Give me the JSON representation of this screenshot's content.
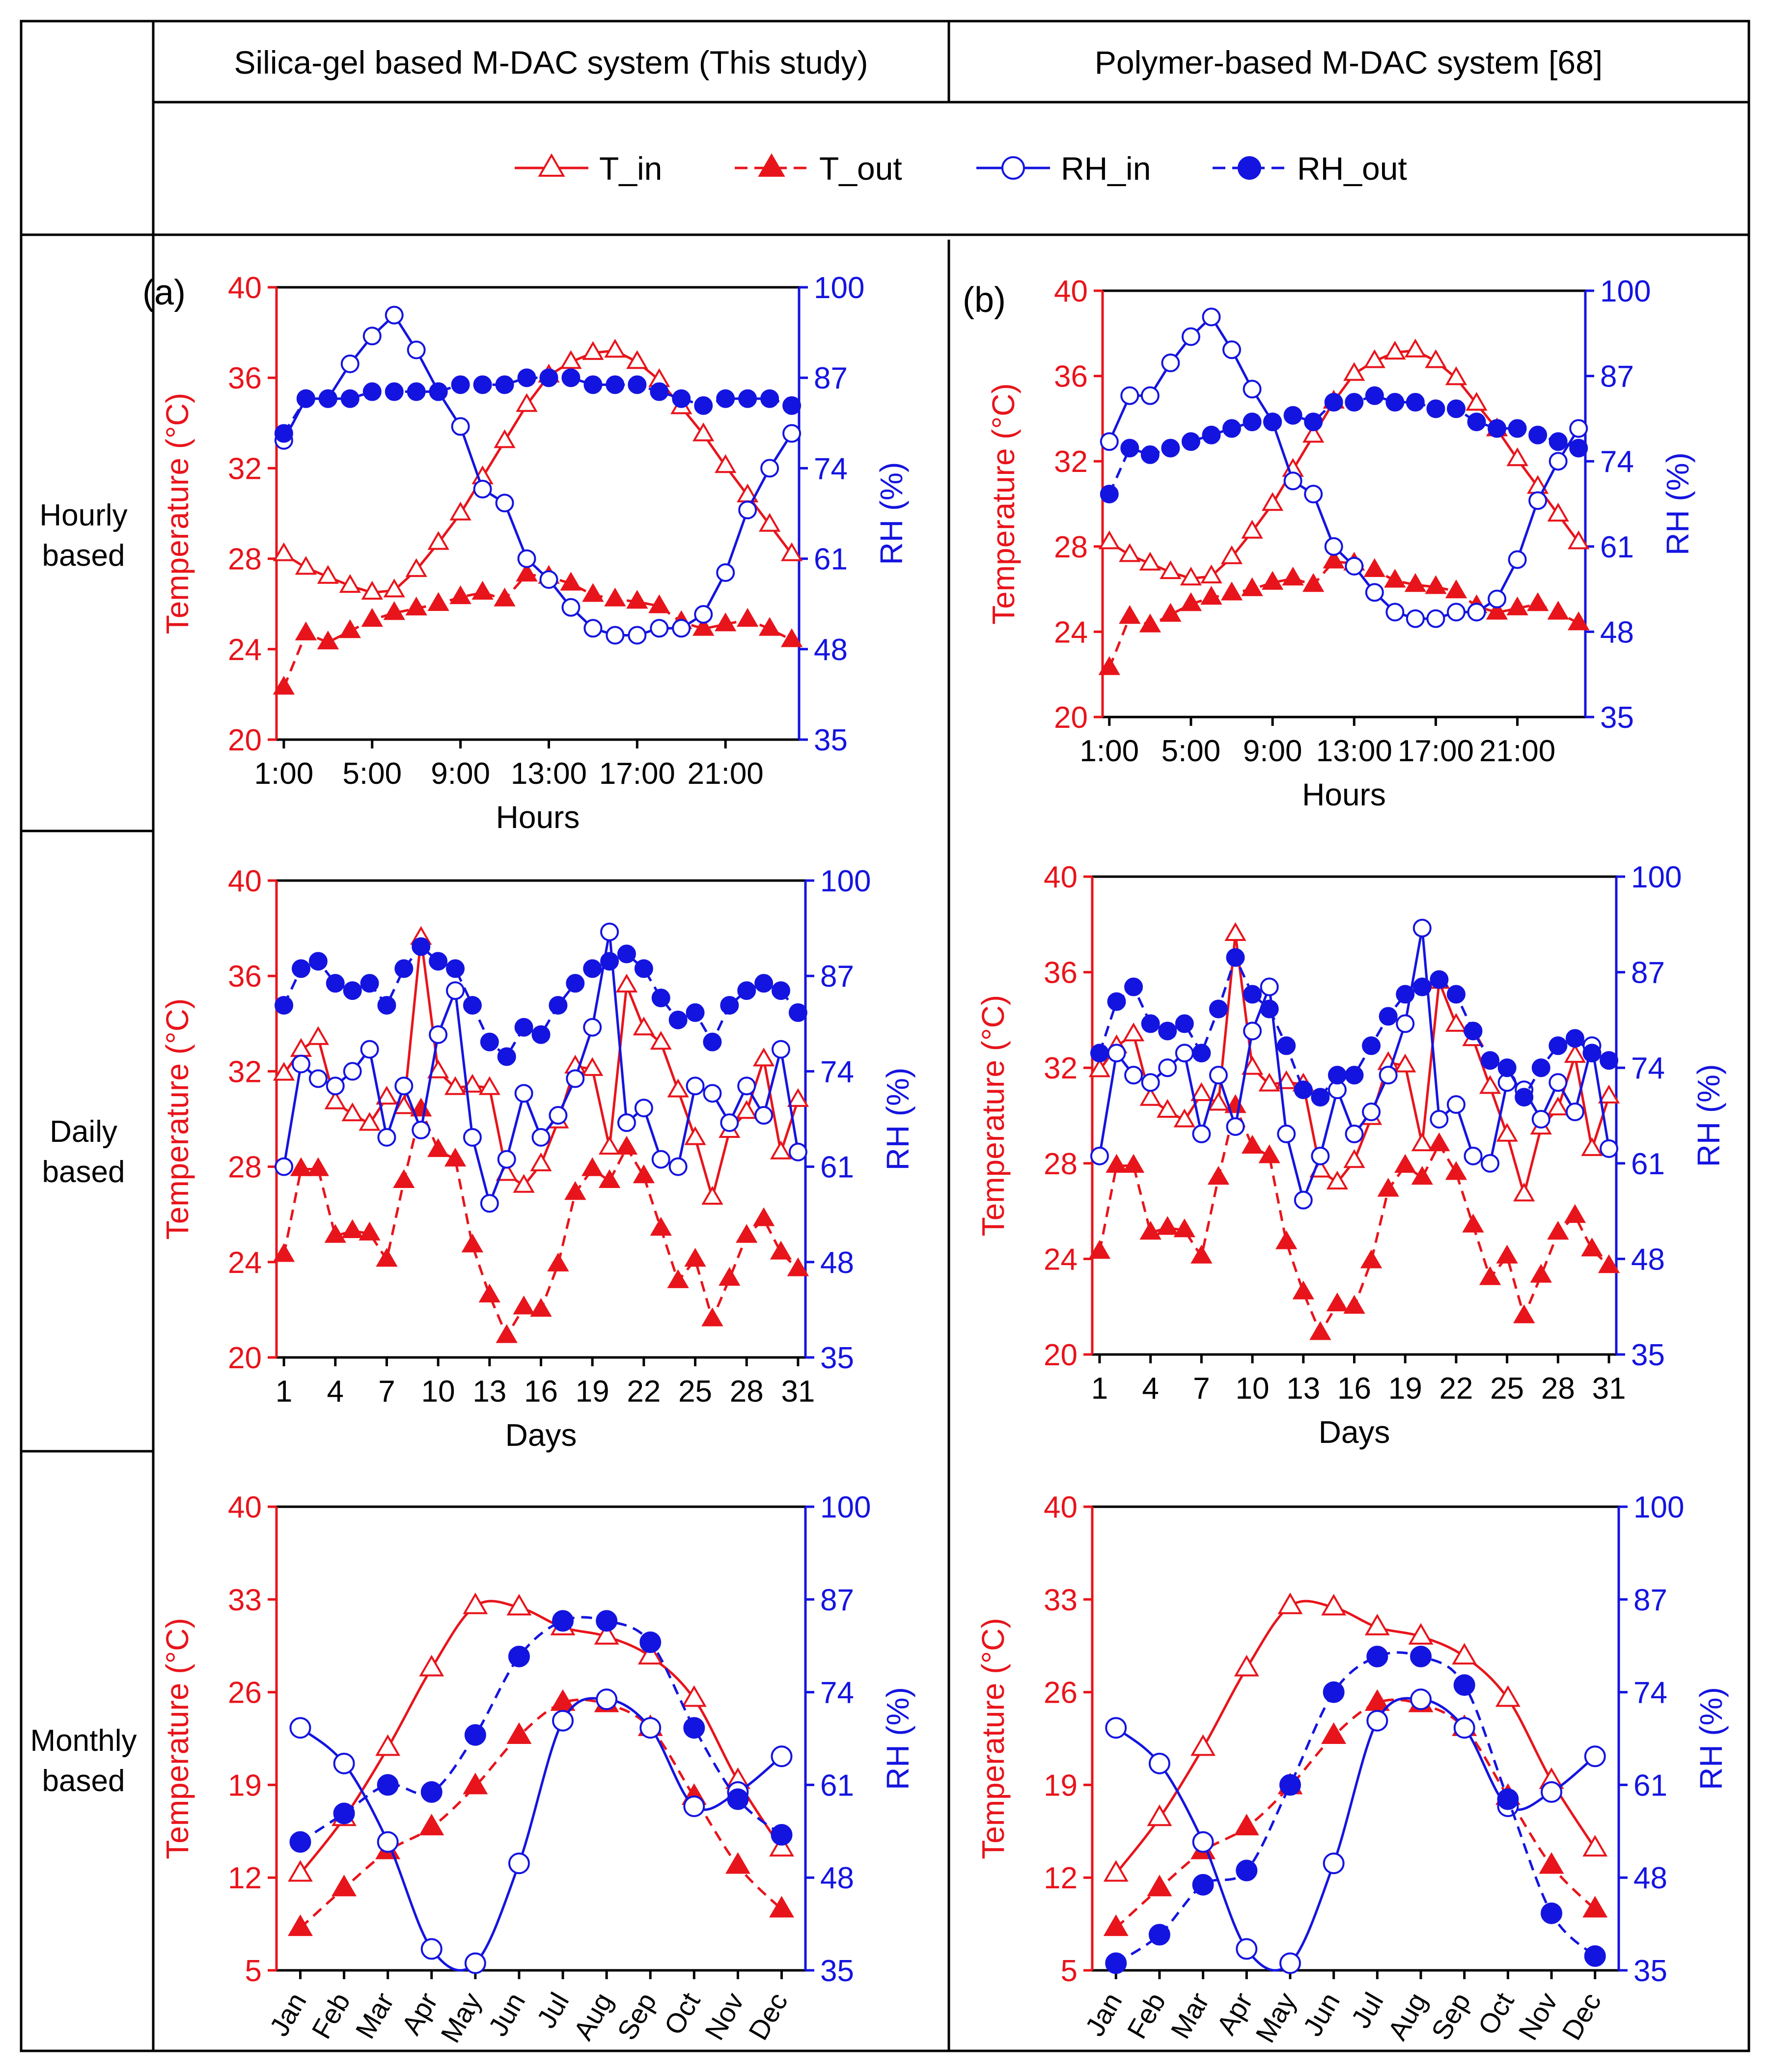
{
  "headers": {
    "col1": "Silica-gel based M-DAC system (This study)",
    "col2": "Polymer-based M-DAC system [68]"
  },
  "row_labels": [
    [
      "Hourly",
      "based"
    ],
    [
      "Daily",
      "based"
    ],
    [
      "Monthly",
      "based"
    ]
  ],
  "legend": [
    {
      "label": "T_in",
      "series": "T_in"
    },
    {
      "label": "T_out",
      "series": "T_out"
    },
    {
      "label": "RH_in",
      "series": "RH_in"
    },
    {
      "label": "RH_out",
      "series": "RH_out"
    }
  ],
  "colors": {
    "temperature": "#e8141b",
    "rh": "#1414e0",
    "frame": "#000000"
  },
  "chart_data": [
    {
      "id": "hourly-silica",
      "panel_label": "(a)",
      "type": "line",
      "xlabel": "Hours",
      "ylabel": "Temperature (°C)",
      "y2label": "RH (%)",
      "x": [
        1,
        2,
        3,
        4,
        5,
        6,
        7,
        8,
        9,
        10,
        11,
        12,
        13,
        14,
        15,
        16,
        17,
        18,
        19,
        20,
        21,
        22,
        23,
        24
      ],
      "xticks": [
        1,
        5,
        9,
        13,
        17,
        21
      ],
      "xticklabels": [
        "1:00",
        "5:00",
        "9:00",
        "13:00",
        "17:00",
        "21:00"
      ],
      "ylim": [
        20,
        40
      ],
      "yticks": [
        20,
        24,
        28,
        32,
        36,
        40
      ],
      "y2lim": [
        35,
        100
      ],
      "y2ticks": [
        35,
        48,
        61,
        74,
        87,
        100
      ],
      "series": [
        {
          "name": "T_in",
          "axis": "left",
          "values": [
            28.2,
            27.6,
            27.2,
            26.8,
            26.5,
            26.6,
            27.5,
            28.7,
            30.0,
            31.6,
            33.2,
            34.8,
            36.1,
            36.7,
            37.1,
            37.2,
            36.7,
            35.9,
            34.7,
            33.5,
            32.1,
            30.8,
            29.5,
            28.2
          ]
        },
        {
          "name": "T_out",
          "axis": "left",
          "values": [
            22.3,
            24.7,
            24.3,
            24.8,
            25.3,
            25.6,
            25.8,
            26.0,
            26.3,
            26.5,
            26.2,
            27.3,
            27.2,
            26.9,
            26.4,
            26.2,
            26.1,
            25.9,
            25.2,
            24.9,
            25.1,
            25.3,
            24.9,
            24.4
          ]
        },
        {
          "name": "RH_in",
          "axis": "right",
          "values": [
            78,
            84,
            84,
            89,
            93,
            96,
            91,
            85,
            80,
            71,
            69,
            61,
            58,
            54,
            51,
            50,
            50,
            51,
            51,
            53,
            59,
            68,
            74,
            79
          ]
        },
        {
          "name": "RH_out",
          "axis": "right",
          "values": [
            79,
            84,
            84,
            84,
            85,
            85,
            85,
            85,
            86,
            86,
            86,
            87,
            87,
            87,
            86,
            86,
            86,
            85,
            84,
            83,
            84,
            84,
            84,
            83
          ]
        }
      ]
    },
    {
      "id": "hourly-polymer",
      "panel_label": "(b)",
      "type": "line",
      "xlabel": "Hours",
      "ylabel": "Temperature (°C)",
      "y2label": "RH (%)",
      "x": [
        1,
        2,
        3,
        4,
        5,
        6,
        7,
        8,
        9,
        10,
        11,
        12,
        13,
        14,
        15,
        16,
        17,
        18,
        19,
        20,
        21,
        22,
        23,
        24
      ],
      "xticks": [
        1,
        5,
        9,
        13,
        17,
        21
      ],
      "xticklabels": [
        "1:00",
        "5:00",
        "9:00",
        "13:00",
        "17:00",
        "21:00"
      ],
      "ylim": [
        20,
        40
      ],
      "yticks": [
        20,
        24,
        28,
        32,
        36,
        40
      ],
      "y2lim": [
        35,
        100
      ],
      "y2ticks": [
        35,
        48,
        61,
        74,
        87,
        100
      ],
      "series": [
        {
          "name": "T_in",
          "axis": "left",
          "values": [
            28.2,
            27.6,
            27.2,
            26.8,
            26.5,
            26.6,
            27.5,
            28.7,
            30.0,
            31.6,
            33.2,
            34.8,
            36.1,
            36.7,
            37.1,
            37.2,
            36.7,
            35.9,
            34.7,
            33.5,
            32.1,
            30.8,
            29.5,
            28.2
          ]
        },
        {
          "name": "T_out",
          "axis": "left",
          "values": [
            22.3,
            24.7,
            24.3,
            24.8,
            25.3,
            25.6,
            25.8,
            26.0,
            26.3,
            26.5,
            26.2,
            27.3,
            27.2,
            26.9,
            26.4,
            26.2,
            26.1,
            25.9,
            25.2,
            24.9,
            25.1,
            25.3,
            24.9,
            24.4
          ]
        },
        {
          "name": "RH_in",
          "axis": "right",
          "values": [
            77,
            84,
            84,
            89,
            93,
            96,
            91,
            85,
            80,
            71,
            69,
            61,
            58,
            54,
            51,
            50,
            50,
            51,
            51,
            53,
            59,
            68,
            74,
            79
          ]
        },
        {
          "name": "RH_out",
          "axis": "right",
          "values": [
            69,
            76,
            75,
            76,
            77,
            78,
            79,
            80,
            80,
            81,
            80,
            83,
            83,
            84,
            83,
            83,
            82,
            82,
            80,
            79,
            79,
            78,
            77,
            76
          ]
        }
      ]
    },
    {
      "id": "daily-silica",
      "type": "line",
      "xlabel": "Days",
      "ylabel": "Temperature (°C)",
      "y2label": "RH (%)",
      "x": [
        1,
        2,
        3,
        4,
        5,
        6,
        7,
        8,
        9,
        10,
        11,
        12,
        13,
        14,
        15,
        16,
        17,
        18,
        19,
        20,
        21,
        22,
        23,
        24,
        25,
        26,
        27,
        28,
        29,
        30,
        31
      ],
      "xticks": [
        1,
        4,
        7,
        10,
        13,
        16,
        19,
        22,
        25,
        28,
        31
      ],
      "xticklabels": [
        "1",
        "4",
        "7",
        "10",
        "13",
        "16",
        "19",
        "22",
        "25",
        "28",
        "31"
      ],
      "ylim": [
        20,
        40
      ],
      "yticks": [
        20,
        24,
        28,
        32,
        36,
        40
      ],
      "y2lim": [
        35,
        100
      ],
      "y2ticks": [
        35,
        48,
        61,
        74,
        87,
        100
      ],
      "series": [
        {
          "name": "T_in",
          "axis": "left",
          "values": [
            31.9,
            32.9,
            33.4,
            30.7,
            30.2,
            29.8,
            30.9,
            30.5,
            37.6,
            32.0,
            31.3,
            31.4,
            31.3,
            27.7,
            27.2,
            28.1,
            29.9,
            32.2,
            32.1,
            28.8,
            35.6,
            33.8,
            33.2,
            31.2,
            29.2,
            26.7,
            29.5,
            30.3,
            32.5,
            28.6,
            30.8
          ]
        },
        {
          "name": "T_out",
          "axis": "left",
          "values": [
            24.3,
            27.9,
            27.9,
            25.1,
            25.3,
            25.2,
            24.1,
            27.4,
            30.4,
            28.7,
            28.3,
            24.7,
            22.6,
            20.9,
            22.1,
            22.0,
            23.9,
            26.9,
            27.9,
            27.4,
            28.8,
            27.6,
            25.4,
            23.2,
            24.1,
            21.6,
            23.3,
            25.1,
            25.8,
            24.4,
            23.7
          ]
        },
        {
          "name": "RH_in",
          "axis": "right",
          "values": [
            61,
            75,
            73,
            72,
            74,
            77,
            65,
            72,
            66,
            79,
            85,
            65,
            56,
            62,
            71,
            65,
            68,
            73,
            80,
            93,
            67,
            69,
            62,
            61,
            72,
            71,
            67,
            72,
            68,
            77,
            63
          ]
        },
        {
          "name": "RH_out",
          "axis": "right",
          "values": [
            83,
            88,
            89,
            86,
            85,
            86,
            83,
            88,
            91,
            89,
            88,
            83,
            78,
            76,
            80,
            79,
            83,
            86,
            88,
            89,
            90,
            88,
            84,
            81,
            82,
            78,
            83,
            85,
            86,
            85,
            82
          ]
        }
      ]
    },
    {
      "id": "daily-polymer",
      "type": "line",
      "xlabel": "Days",
      "ylabel": "Temperature (°C)",
      "y2label": "RH (%)",
      "x": [
        1,
        2,
        3,
        4,
        5,
        6,
        7,
        8,
        9,
        10,
        11,
        12,
        13,
        14,
        15,
        16,
        17,
        18,
        19,
        20,
        21,
        22,
        23,
        24,
        25,
        26,
        27,
        28,
        29,
        30,
        31
      ],
      "xticks": [
        1,
        4,
        7,
        10,
        13,
        16,
        19,
        22,
        25,
        28,
        31
      ],
      "xticklabels": [
        "1",
        "4",
        "7",
        "10",
        "13",
        "16",
        "19",
        "22",
        "25",
        "28",
        "31"
      ],
      "ylim": [
        20,
        40
      ],
      "yticks": [
        20,
        24,
        28,
        32,
        36,
        40
      ],
      "y2lim": [
        35,
        100
      ],
      "y2ticks": [
        35,
        48,
        61,
        74,
        87,
        100
      ],
      "series": [
        {
          "name": "T_in",
          "axis": "left",
          "values": [
            31.9,
            32.9,
            33.4,
            30.7,
            30.2,
            29.8,
            30.9,
            30.5,
            37.6,
            32.0,
            31.3,
            31.4,
            31.3,
            27.7,
            27.2,
            28.1,
            29.9,
            32.2,
            32.1,
            28.8,
            35.6,
            33.8,
            33.2,
            31.2,
            29.2,
            26.7,
            29.5,
            30.3,
            32.5,
            28.6,
            30.8
          ]
        },
        {
          "name": "T_out",
          "axis": "left",
          "values": [
            24.3,
            27.9,
            27.9,
            25.1,
            25.3,
            25.2,
            24.1,
            27.4,
            30.4,
            28.7,
            28.3,
            24.7,
            22.6,
            20.9,
            22.1,
            22.0,
            23.9,
            26.9,
            27.9,
            27.4,
            28.8,
            27.6,
            25.4,
            23.2,
            24.1,
            21.6,
            23.3,
            25.1,
            25.8,
            24.4,
            23.7
          ]
        },
        {
          "name": "RH_in",
          "axis": "right",
          "values": [
            62,
            76,
            73,
            72,
            74,
            76,
            65,
            73,
            66,
            79,
            85,
            65,
            56,
            62,
            71,
            65,
            68,
            73,
            80,
            93,
            67,
            69,
            62,
            61,
            72,
            71,
            67,
            72,
            68,
            77,
            63
          ]
        },
        {
          "name": "RH_out",
          "axis": "right",
          "values": [
            76,
            83,
            85,
            80,
            79,
            80,
            76,
            82,
            89,
            84,
            82,
            77,
            71,
            70,
            73,
            73,
            77,
            81,
            84,
            85,
            86,
            84,
            79,
            75,
            74,
            70,
            74,
            77,
            78,
            76,
            75
          ]
        }
      ]
    },
    {
      "id": "monthly-silica",
      "type": "line",
      "xlabel": "",
      "ylabel": "Temperature (°C)",
      "y2label": "RH (%)",
      "x": [
        1,
        2,
        3,
        4,
        5,
        6,
        7,
        8,
        9,
        10,
        11,
        12
      ],
      "xticks": [
        1,
        2,
        3,
        4,
        5,
        6,
        7,
        8,
        9,
        10,
        11,
        12
      ],
      "xticklabels": [
        "Jan",
        "Feb",
        "Mar",
        "Apr",
        "May",
        "Jun",
        "Jul",
        "Aug",
        "Sep",
        "Oct",
        "Nov",
        "Dec"
      ],
      "ylim": [
        5,
        40
      ],
      "yticks": [
        5,
        12,
        19,
        26,
        33,
        40
      ],
      "y2lim": [
        35,
        100
      ],
      "y2ticks": [
        35,
        48,
        61,
        74,
        87,
        100
      ],
      "series": [
        {
          "name": "T_in",
          "axis": "left",
          "values": [
            12.3,
            16.5,
            21.8,
            27.8,
            32.5,
            32.4,
            30.9,
            30.2,
            28.7,
            25.5,
            19.3,
            14.2
          ]
        },
        {
          "name": "T_out",
          "axis": "left",
          "values": [
            8.2,
            11.2,
            14.0,
            15.8,
            18.9,
            22.7,
            25.2,
            25.1,
            23.3,
            18.1,
            12.9,
            9.6
          ]
        },
        {
          "name": "RH_in",
          "axis": "right",
          "values": [
            69,
            64,
            53,
            38,
            36,
            50,
            70,
            73,
            69,
            58,
            60,
            65
          ]
        },
        {
          "name": "RH_out",
          "axis": "right",
          "values": [
            53,
            57,
            61,
            60,
            68,
            79,
            84,
            84,
            81,
            69,
            59,
            54
          ]
        }
      ]
    },
    {
      "id": "monthly-polymer",
      "type": "line",
      "xlabel": "",
      "ylabel": "Temperature (°C)",
      "y2label": "RH (%)",
      "x": [
        1,
        2,
        3,
        4,
        5,
        6,
        7,
        8,
        9,
        10,
        11,
        12
      ],
      "xticks": [
        1,
        2,
        3,
        4,
        5,
        6,
        7,
        8,
        9,
        10,
        11,
        12
      ],
      "xticklabels": [
        "Jan",
        "Feb",
        "Mar",
        "Apr",
        "May",
        "Jun",
        "Jul",
        "Aug",
        "Sep",
        "Oct",
        "Nov",
        "Dec"
      ],
      "ylim": [
        5,
        40
      ],
      "yticks": [
        5,
        12,
        19,
        26,
        33,
        40
      ],
      "y2lim": [
        35,
        100
      ],
      "y2ticks": [
        35,
        48,
        61,
        74,
        87,
        100
      ],
      "series": [
        {
          "name": "T_in",
          "axis": "left",
          "values": [
            12.3,
            16.5,
            21.8,
            27.8,
            32.5,
            32.4,
            30.9,
            30.2,
            28.7,
            25.5,
            19.3,
            14.2
          ]
        },
        {
          "name": "T_out",
          "axis": "left",
          "values": [
            8.2,
            11.2,
            14.0,
            15.8,
            18.9,
            22.7,
            25.2,
            25.1,
            23.3,
            18.1,
            12.9,
            9.6
          ]
        },
        {
          "name": "RH_in",
          "axis": "right",
          "values": [
            69,
            64,
            53,
            38,
            36,
            50,
            70,
            73,
            69,
            58,
            60,
            65
          ]
        },
        {
          "name": "RH_out",
          "axis": "right",
          "values": [
            36,
            40,
            47,
            49,
            61,
            74,
            79,
            79,
            75,
            59,
            43,
            37
          ]
        }
      ]
    }
  ]
}
